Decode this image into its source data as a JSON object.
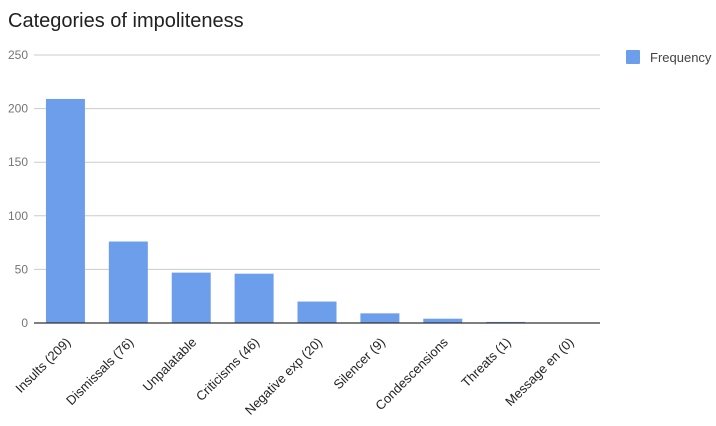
{
  "chart_data": {
    "type": "bar",
    "title": "Categories of impoliteness",
    "xlabel": "",
    "ylabel": "",
    "categories": [
      "Insults (209)",
      "Dismissals (76)",
      "Unpalatable",
      "Criticisms (46)",
      "Negative exp (20)",
      "Silencer (9)",
      "Condescensions",
      "Threats (1)",
      "Message en (0)"
    ],
    "series": [
      {
        "name": "Frequency",
        "color": "#6d9eeb",
        "values": [
          209,
          76,
          47,
          46,
          20,
          9,
          4,
          1,
          0
        ]
      }
    ],
    "ylim": [
      0,
      250
    ],
    "yticks": [
      "0",
      "50",
      "100",
      "150",
      "200",
      "250"
    ],
    "grid": true,
    "legend_position": "right"
  }
}
